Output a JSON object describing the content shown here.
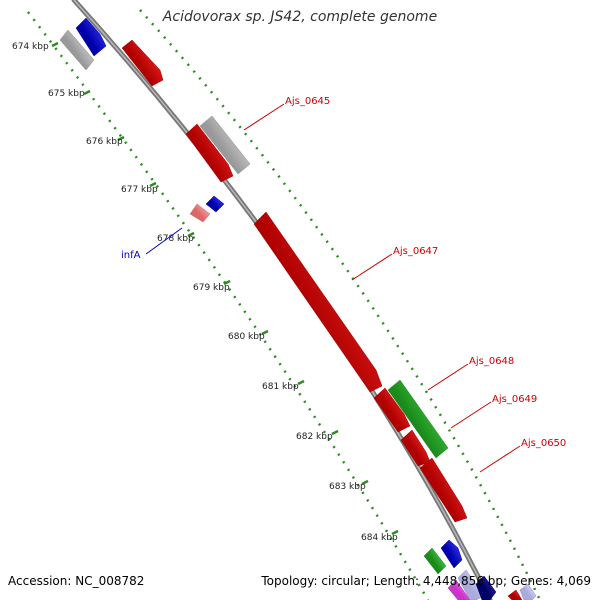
{
  "title": "Acidovorax sp. JS42, complete genome",
  "footer": {
    "accession": "Accession: NC_008782",
    "stats": "Topology: circular; Length: 4,448,856 bp; Genes: 4,069"
  },
  "ticks": [
    "674 kbp",
    "675 kbp",
    "676 kbp",
    "677 kbp",
    "678 kbp",
    "679 kbp",
    "680 kbp",
    "681 kbp",
    "682 kbp",
    "683 kbp",
    "684 kbp"
  ],
  "gene_labels": [
    {
      "text": "Ajs_0645",
      "color": "#cc0000"
    },
    {
      "text": "Ajs_0647",
      "color": "#cc0000"
    },
    {
      "text": "Ajs_0648",
      "color": "#cc0000"
    },
    {
      "text": "Ajs_0649",
      "color": "#cc0000"
    },
    {
      "text": "Ajs_0650",
      "color": "#cc0000"
    },
    {
      "text": "infA",
      "color": "#0000cc"
    }
  ],
  "colors": {
    "backbone": "#888888",
    "tick_green": "#2e8b22",
    "cds_red": "#ee1111",
    "gene_gray": "#bbbbbb",
    "gene_blue": "#1111ee",
    "gene_green": "#33bb33",
    "gene_pink": "#ee8888"
  }
}
